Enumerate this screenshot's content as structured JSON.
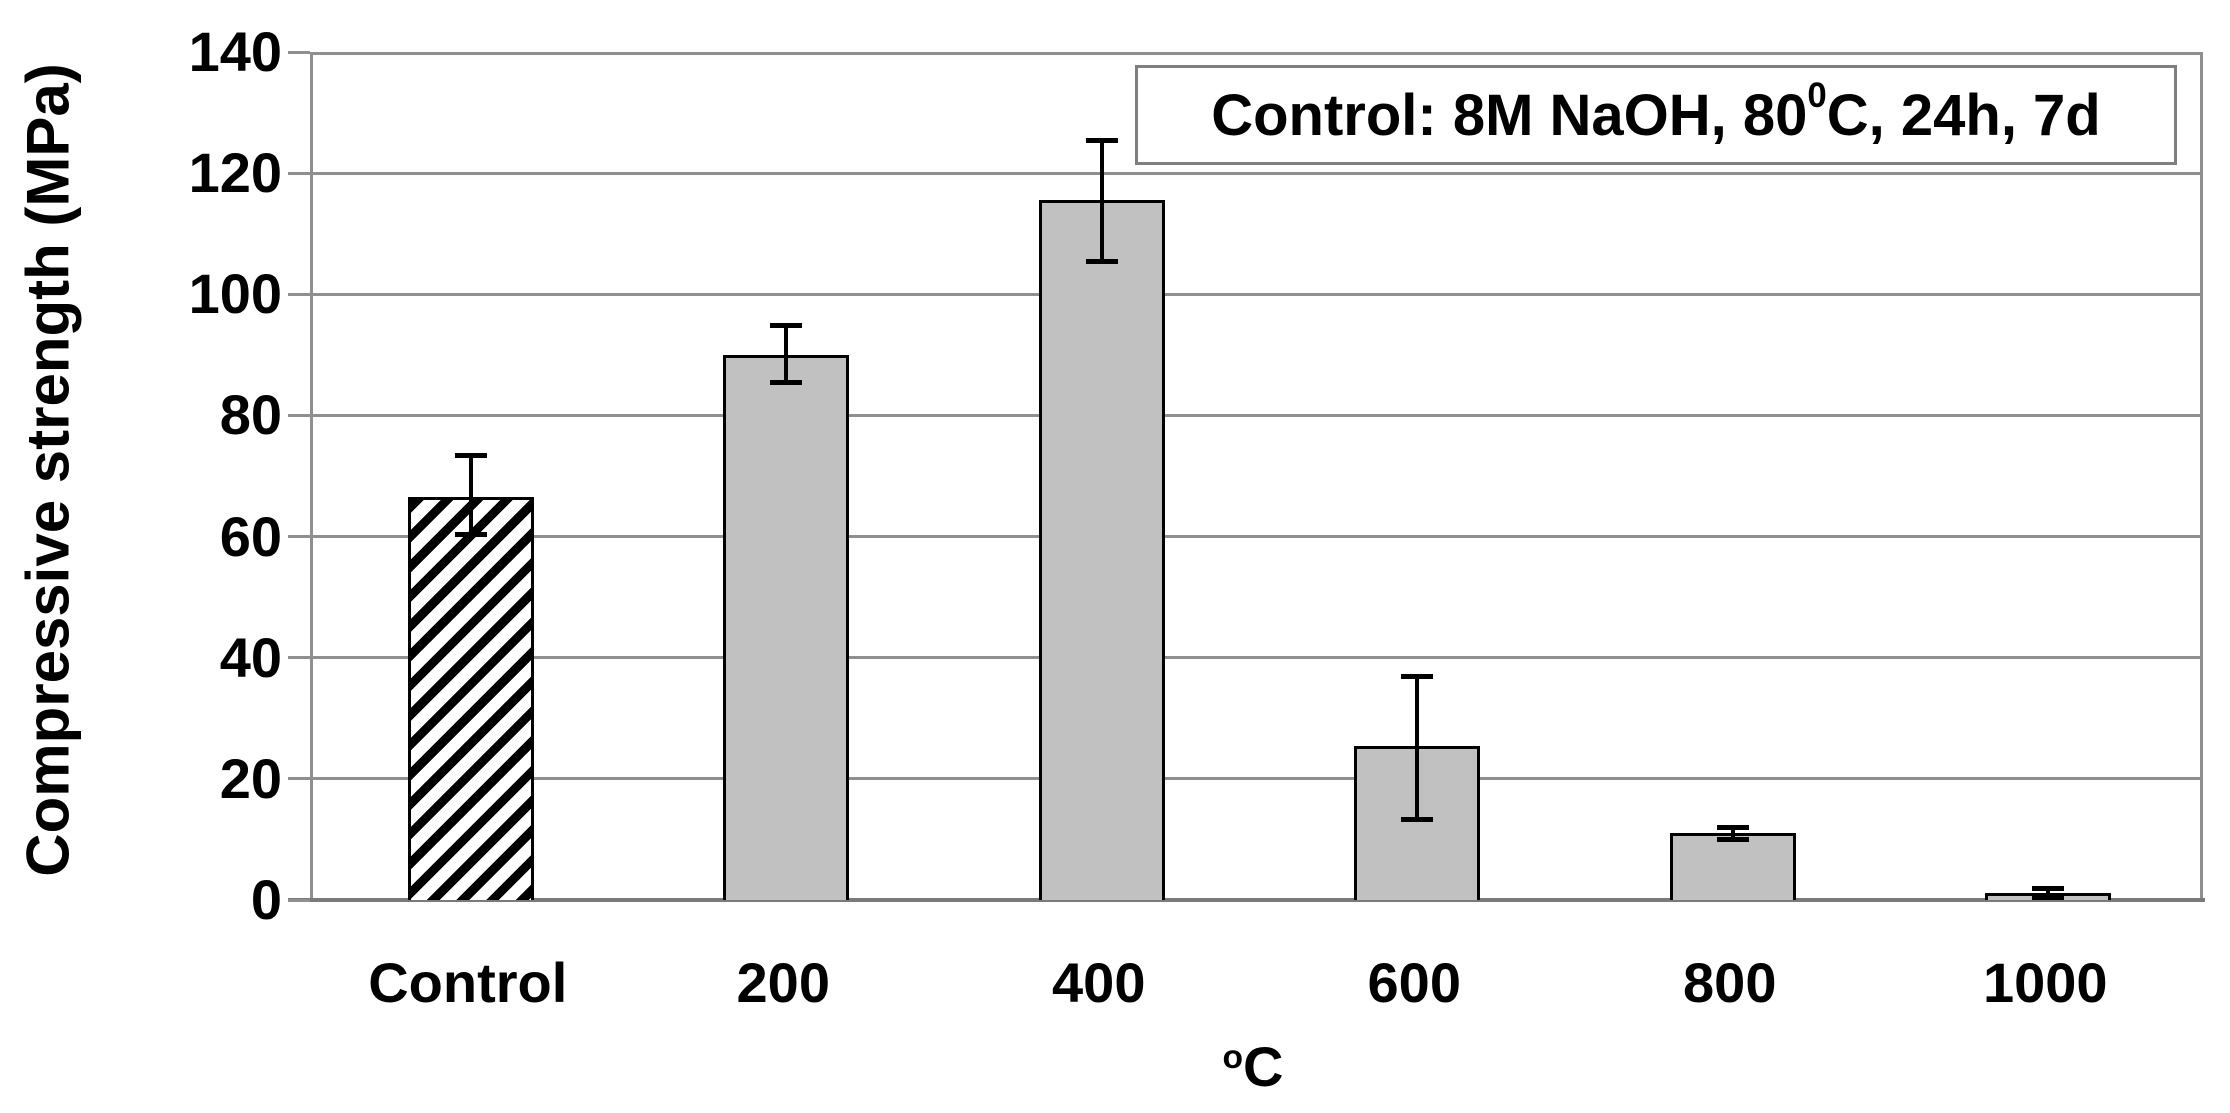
{
  "chart_data": {
    "type": "bar",
    "title": "",
    "ylabel": "Compressive strength (MPa)",
    "xlabel_parts": {
      "sup": "o",
      "main": "C"
    },
    "ylim": [
      0,
      140
    ],
    "ytick_interval": 20,
    "yticks": [
      0,
      20,
      40,
      60,
      80,
      100,
      120,
      140
    ],
    "grid": "horizontal",
    "legend_position": "top-right",
    "legend_parts": {
      "pre": "Control: 8M NaOH, 80 ",
      "sup": "0",
      "post": "C, 24h, 7d"
    },
    "categories": [
      "Control",
      "200",
      "400",
      "600",
      "800",
      "1000"
    ],
    "values": [
      66.5,
      90,
      115.5,
      25.4,
      11,
      1.2
    ],
    "error_low": [
      60.5,
      85.5,
      105.5,
      13.4,
      10,
      0.5
    ],
    "error_high": [
      73.5,
      95,
      125.5,
      37,
      12,
      1.9
    ],
    "bar_styles": [
      "hatched-diagonal",
      "solid",
      "solid",
      "solid",
      "solid",
      "solid"
    ]
  },
  "colors": {
    "bar_fill": "#c1c1c1",
    "bar_border": "#000000",
    "hatch_stripe": "#000000",
    "hatch_background": "#ffffff",
    "gridline": "#8f8f8f",
    "axis_line": "#7a7a7a",
    "legend_border": "#7f7f7f",
    "text": "#000000",
    "background": "#ffffff"
  }
}
